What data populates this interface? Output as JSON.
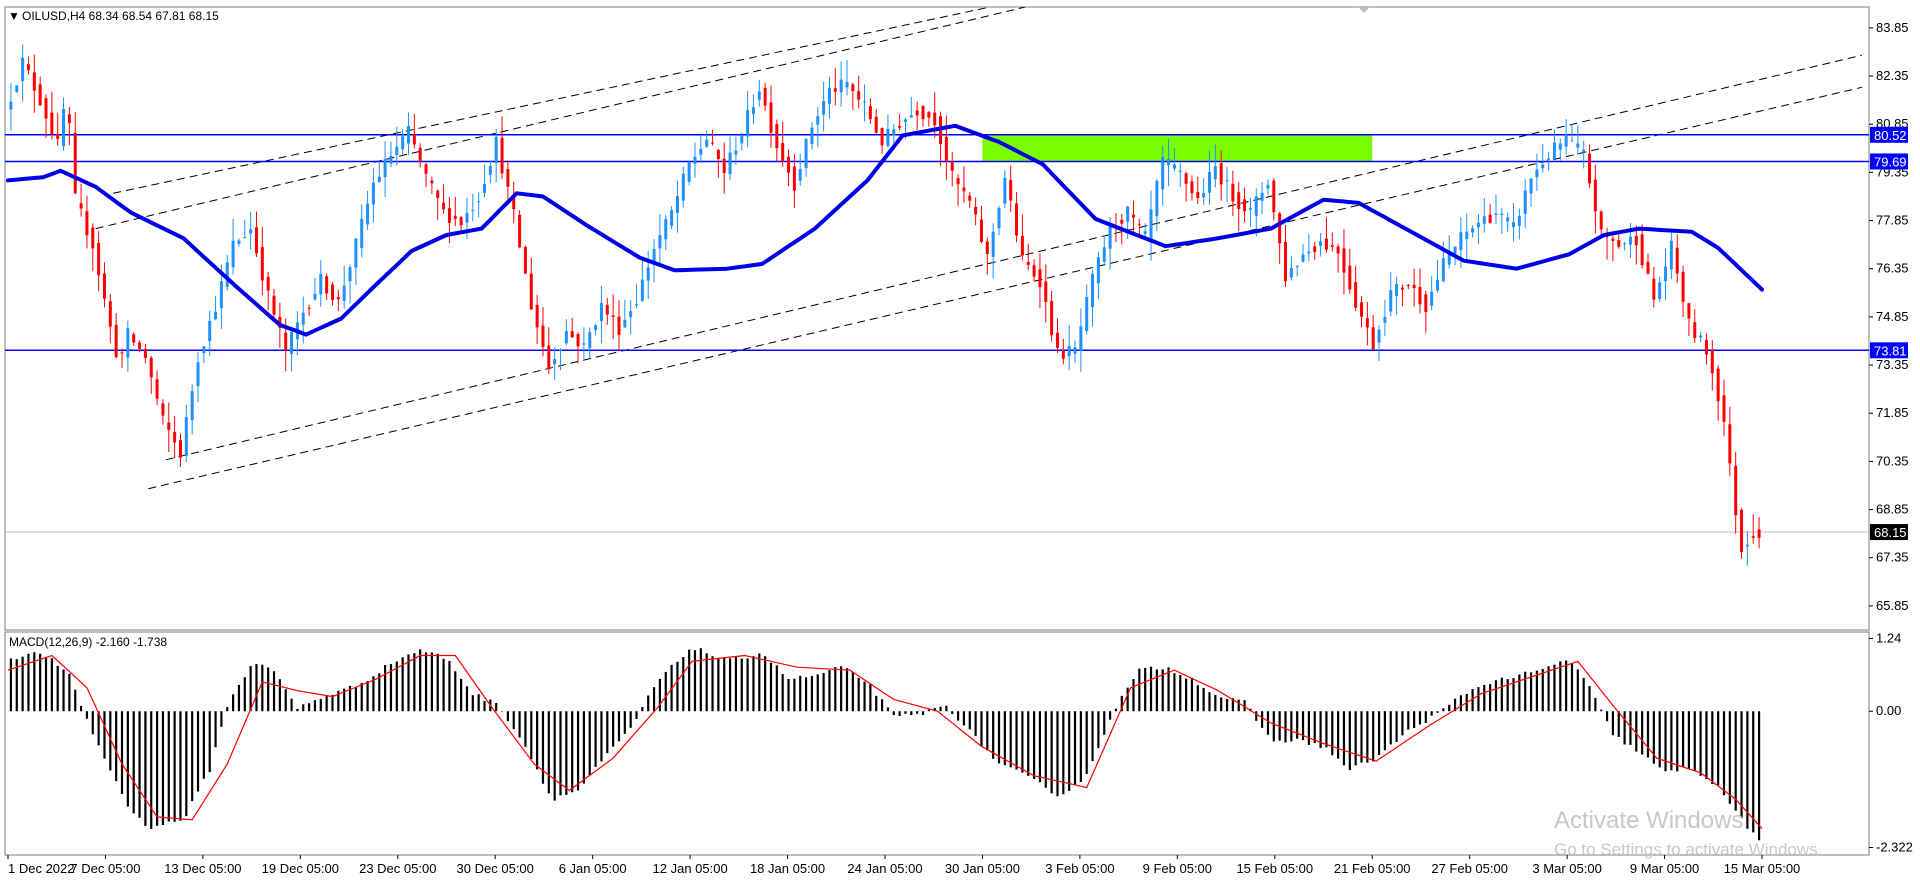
{
  "header": {
    "symbol_line": "OILUSD,H4  68.34 68.54 67.81 68.15",
    "menu_marker": "▼"
  },
  "macd_header": "MACD(12,26,9) -2.160 -1.738",
  "watermark": {
    "title": "Activate Windows",
    "subtitle": "Go to Settings to activate Windows."
  },
  "colors": {
    "bull_candle": "#1e90ff",
    "bear_candle": "#ff0000",
    "moving_average": "#0000e6",
    "support_resistance": "#0000ff",
    "zone_fill": "#7cfc00",
    "channel_lines": "#000000",
    "macd_histogram": "#000000",
    "macd_signal": "#ff0000",
    "label_bg_levels": "#0000ff",
    "label_bg_price": "#000000"
  },
  "chart_data": [
    {
      "type": "candlestick",
      "symbol": "OILUSD",
      "timeframe": "H4",
      "ylim": [
        65.1,
        84.5
      ],
      "y_ticks": [
        "83.85",
        "82.35",
        "80.85",
        "79.35",
        "77.85",
        "76.35",
        "74.85",
        "73.35",
        "71.85",
        "70.35",
        "68.85",
        "67.35",
        "65.85"
      ],
      "x_ticks": [
        "1 Dec 2022",
        "7 Dec 05:00",
        "13 Dec 05:00",
        "19 Dec 05:00",
        "23 Dec 05:00",
        "30 Dec 05:00",
        "6 Jan 05:00",
        "12 Jan 05:00",
        "18 Jan 05:00",
        "24 Jan 05:00",
        "30 Jan 05:00",
        "3 Feb 05:00",
        "9 Feb 05:00",
        "15 Feb 05:00",
        "21 Feb 05:00",
        "27 Feb 05:00",
        "3 Mar 05:00",
        "9 Mar 05:00",
        "15 Mar 05:00"
      ],
      "last_bar": {
        "open": 68.34,
        "high": 68.54,
        "low": 67.81,
        "close": 68.15
      },
      "horizontal_levels": [
        {
          "value": 80.52,
          "label": "80.52"
        },
        {
          "value": 79.69,
          "label": "79.69"
        },
        {
          "value": 73.81,
          "label": "73.81"
        }
      ],
      "current_price_label": "68.15",
      "current_price": 68.15,
      "zone": {
        "x_from": "30 Jan 05:00",
        "x_to": "21 Feb 05:00",
        "y_from": 79.69,
        "y_to": 80.52
      },
      "moving_average_path": [
        {
          "x": 0.0,
          "y": 79.1
        },
        {
          "x": 0.02,
          "y": 79.2
        },
        {
          "x": 0.03,
          "y": 79.4
        },
        {
          "x": 0.05,
          "y": 78.9
        },
        {
          "x": 0.07,
          "y": 78.1
        },
        {
          "x": 0.1,
          "y": 77.3
        },
        {
          "x": 0.13,
          "y": 75.8
        },
        {
          "x": 0.155,
          "y": 74.6
        },
        {
          "x": 0.17,
          "y": 74.3
        },
        {
          "x": 0.19,
          "y": 74.8
        },
        {
          "x": 0.205,
          "y": 75.6
        },
        {
          "x": 0.23,
          "y": 76.9
        },
        {
          "x": 0.25,
          "y": 77.4
        },
        {
          "x": 0.27,
          "y": 77.6
        },
        {
          "x": 0.29,
          "y": 78.7
        },
        {
          "x": 0.305,
          "y": 78.6
        },
        {
          "x": 0.33,
          "y": 77.7
        },
        {
          "x": 0.36,
          "y": 76.7
        },
        {
          "x": 0.38,
          "y": 76.3
        },
        {
          "x": 0.41,
          "y": 76.35
        },
        {
          "x": 0.43,
          "y": 76.5
        },
        {
          "x": 0.46,
          "y": 77.6
        },
        {
          "x": 0.49,
          "y": 79.1
        },
        {
          "x": 0.51,
          "y": 80.5
        },
        {
          "x": 0.54,
          "y": 80.8
        },
        {
          "x": 0.565,
          "y": 80.3
        },
        {
          "x": 0.59,
          "y": 79.6
        },
        {
          "x": 0.62,
          "y": 77.9
        },
        {
          "x": 0.66,
          "y": 77.05
        },
        {
          "x": 0.69,
          "y": 77.3
        },
        {
          "x": 0.72,
          "y": 77.6
        },
        {
          "x": 0.75,
          "y": 78.5
        },
        {
          "x": 0.77,
          "y": 78.4
        },
        {
          "x": 0.8,
          "y": 77.5
        },
        {
          "x": 0.83,
          "y": 76.6
        },
        {
          "x": 0.86,
          "y": 76.35
        },
        {
          "x": 0.89,
          "y": 76.8
        },
        {
          "x": 0.91,
          "y": 77.4
        },
        {
          "x": 0.93,
          "y": 77.6
        },
        {
          "x": 0.96,
          "y": 77.5
        },
        {
          "x": 0.975,
          "y": 77.0
        },
        {
          "x": 1.0,
          "y": 75.7
        }
      ],
      "channel_lines": [
        {
          "from": {
            "x": 0.05,
            "y": 77.6
          },
          "to": {
            "x": 0.58,
            "y": 84.5
          }
        },
        {
          "from": {
            "x": 0.06,
            "y": 78.7
          },
          "to": {
            "x": 0.56,
            "y": 84.5
          }
        },
        {
          "from": {
            "x": 0.08,
            "y": 69.5
          },
          "to": {
            "x": 1.0,
            "y": 82.0
          }
        },
        {
          "from": {
            "x": 0.09,
            "y": 70.4
          },
          "to": {
            "x": 1.0,
            "y": 83.0
          }
        }
      ],
      "price_path": [
        {
          "x": 0.0,
          "y": 81.2
        },
        {
          "x": 0.01,
          "y": 82.8
        },
        {
          "x": 0.02,
          "y": 81.6
        },
        {
          "x": 0.03,
          "y": 80.2
        },
        {
          "x": 0.035,
          "y": 81.8
        },
        {
          "x": 0.04,
          "y": 78.5
        },
        {
          "x": 0.05,
          "y": 77.1
        },
        {
          "x": 0.06,
          "y": 74.5
        },
        {
          "x": 0.065,
          "y": 73.4
        },
        {
          "x": 0.07,
          "y": 74.3
        },
        {
          "x": 0.08,
          "y": 73.6
        },
        {
          "x": 0.09,
          "y": 71.6
        },
        {
          "x": 0.1,
          "y": 70.6
        },
        {
          "x": 0.11,
          "y": 73.6
        },
        {
          "x": 0.12,
          "y": 75.2
        },
        {
          "x": 0.13,
          "y": 77.1
        },
        {
          "x": 0.14,
          "y": 77.6
        },
        {
          "x": 0.15,
          "y": 75.5
        },
        {
          "x": 0.16,
          "y": 73.8
        },
        {
          "x": 0.17,
          "y": 75.0
        },
        {
          "x": 0.18,
          "y": 76.0
        },
        {
          "x": 0.19,
          "y": 75.3
        },
        {
          "x": 0.2,
          "y": 77.1
        },
        {
          "x": 0.21,
          "y": 79.0
        },
        {
          "x": 0.22,
          "y": 79.9
        },
        {
          "x": 0.23,
          "y": 80.6
        },
        {
          "x": 0.24,
          "y": 79.2
        },
        {
          "x": 0.25,
          "y": 78.1
        },
        {
          "x": 0.26,
          "y": 77.8
        },
        {
          "x": 0.27,
          "y": 78.6
        },
        {
          "x": 0.28,
          "y": 80.3
        },
        {
          "x": 0.29,
          "y": 78.0
        },
        {
          "x": 0.3,
          "y": 75.2
        },
        {
          "x": 0.31,
          "y": 73.3
        },
        {
          "x": 0.32,
          "y": 74.4
        },
        {
          "x": 0.33,
          "y": 73.9
        },
        {
          "x": 0.34,
          "y": 75.2
        },
        {
          "x": 0.35,
          "y": 74.5
        },
        {
          "x": 0.36,
          "y": 75.4
        },
        {
          "x": 0.37,
          "y": 77.0
        },
        {
          "x": 0.38,
          "y": 78.1
        },
        {
          "x": 0.39,
          "y": 79.6
        },
        {
          "x": 0.4,
          "y": 80.4
        },
        {
          "x": 0.41,
          "y": 79.4
        },
        {
          "x": 0.42,
          "y": 80.6
        },
        {
          "x": 0.43,
          "y": 82.0
        },
        {
          "x": 0.44,
          "y": 80.2
        },
        {
          "x": 0.45,
          "y": 79.0
        },
        {
          "x": 0.46,
          "y": 80.8
        },
        {
          "x": 0.47,
          "y": 81.9
        },
        {
          "x": 0.48,
          "y": 82.1
        },
        {
          "x": 0.49,
          "y": 81.4
        },
        {
          "x": 0.5,
          "y": 80.3
        },
        {
          "x": 0.51,
          "y": 80.9
        },
        {
          "x": 0.52,
          "y": 81.3
        },
        {
          "x": 0.53,
          "y": 81.0
        },
        {
          "x": 0.54,
          "y": 79.2
        },
        {
          "x": 0.55,
          "y": 78.4
        },
        {
          "x": 0.56,
          "y": 76.7
        },
        {
          "x": 0.57,
          "y": 79.2
        },
        {
          "x": 0.58,
          "y": 76.6
        },
        {
          "x": 0.59,
          "y": 76.0
        },
        {
          "x": 0.6,
          "y": 73.7
        },
        {
          "x": 0.61,
          "y": 73.8
        },
        {
          "x": 0.62,
          "y": 76.0
        },
        {
          "x": 0.63,
          "y": 77.6
        },
        {
          "x": 0.64,
          "y": 78.1
        },
        {
          "x": 0.65,
          "y": 77.3
        },
        {
          "x": 0.66,
          "y": 79.7
        },
        {
          "x": 0.67,
          "y": 79.3
        },
        {
          "x": 0.68,
          "y": 78.5
        },
        {
          "x": 0.69,
          "y": 79.5
        },
        {
          "x": 0.7,
          "y": 78.6
        },
        {
          "x": 0.71,
          "y": 78.1
        },
        {
          "x": 0.72,
          "y": 79.1
        },
        {
          "x": 0.73,
          "y": 76.1
        },
        {
          "x": 0.74,
          "y": 76.8
        },
        {
          "x": 0.75,
          "y": 77.2
        },
        {
          "x": 0.76,
          "y": 76.9
        },
        {
          "x": 0.77,
          "y": 75.3
        },
        {
          "x": 0.78,
          "y": 74.0
        },
        {
          "x": 0.79,
          "y": 75.6
        },
        {
          "x": 0.8,
          "y": 75.9
        },
        {
          "x": 0.81,
          "y": 75.2
        },
        {
          "x": 0.82,
          "y": 76.5
        },
        {
          "x": 0.83,
          "y": 77.3
        },
        {
          "x": 0.84,
          "y": 77.8
        },
        {
          "x": 0.85,
          "y": 78.1
        },
        {
          "x": 0.86,
          "y": 77.6
        },
        {
          "x": 0.87,
          "y": 79.2
        },
        {
          "x": 0.88,
          "y": 79.9
        },
        {
          "x": 0.89,
          "y": 80.4
        },
        {
          "x": 0.9,
          "y": 79.9
        },
        {
          "x": 0.91,
          "y": 77.4
        },
        {
          "x": 0.92,
          "y": 77.1
        },
        {
          "x": 0.93,
          "y": 77.3
        },
        {
          "x": 0.94,
          "y": 75.4
        },
        {
          "x": 0.95,
          "y": 77.0
        },
        {
          "x": 0.96,
          "y": 74.6
        },
        {
          "x": 0.97,
          "y": 73.8
        },
        {
          "x": 0.975,
          "y": 72.8
        },
        {
          "x": 0.98,
          "y": 71.6
        },
        {
          "x": 0.985,
          "y": 69.4
        },
        {
          "x": 0.99,
          "y": 67.6
        },
        {
          "x": 0.995,
          "y": 68.1
        },
        {
          "x": 1.0,
          "y": 68.15
        }
      ]
    },
    {
      "type": "bar",
      "name": "MACD(12,26,9)",
      "values_text": "-2.160 -1.738",
      "ylim": [
        -2.45,
        1.35
      ],
      "y_ticks": [
        "1.24",
        "0.00",
        "-2.322"
      ],
      "histogram_path": [
        {
          "x": 0.0,
          "y": 0.9
        },
        {
          "x": 0.02,
          "y": 1.0
        },
        {
          "x": 0.035,
          "y": 0.6
        },
        {
          "x": 0.05,
          "y": -0.5
        },
        {
          "x": 0.07,
          "y": -1.7
        },
        {
          "x": 0.08,
          "y": -1.98
        },
        {
          "x": 0.1,
          "y": -1.85
        },
        {
          "x": 0.115,
          "y": -1.0
        },
        {
          "x": 0.125,
          "y": 0.1
        },
        {
          "x": 0.14,
          "y": 0.85
        },
        {
          "x": 0.15,
          "y": 0.75
        },
        {
          "x": 0.165,
          "y": 0.05
        },
        {
          "x": 0.18,
          "y": 0.25
        },
        {
          "x": 0.2,
          "y": 0.45
        },
        {
          "x": 0.22,
          "y": 0.85
        },
        {
          "x": 0.235,
          "y": 1.05
        },
        {
          "x": 0.25,
          "y": 0.9
        },
        {
          "x": 0.265,
          "y": 0.3
        },
        {
          "x": 0.28,
          "y": 0.1
        },
        {
          "x": 0.295,
          "y": -0.6
        },
        {
          "x": 0.31,
          "y": -1.5
        },
        {
          "x": 0.325,
          "y": -1.35
        },
        {
          "x": 0.34,
          "y": -0.8
        },
        {
          "x": 0.355,
          "y": -0.3
        },
        {
          "x": 0.37,
          "y": 0.5
        },
        {
          "x": 0.39,
          "y": 1.1
        },
        {
          "x": 0.41,
          "y": 0.85
        },
        {
          "x": 0.43,
          "y": 1.0
        },
        {
          "x": 0.445,
          "y": 0.55
        },
        {
          "x": 0.46,
          "y": 0.6
        },
        {
          "x": 0.475,
          "y": 0.75
        },
        {
          "x": 0.49,
          "y": 0.5
        },
        {
          "x": 0.505,
          "y": -0.1
        },
        {
          "x": 0.52,
          "y": -0.05
        },
        {
          "x": 0.535,
          "y": 0.1
        },
        {
          "x": 0.55,
          "y": -0.4
        },
        {
          "x": 0.565,
          "y": -0.9
        },
        {
          "x": 0.58,
          "y": -1.1
        },
        {
          "x": 0.6,
          "y": -1.45
        },
        {
          "x": 0.615,
          "y": -1.1
        },
        {
          "x": 0.63,
          "y": 0.0
        },
        {
          "x": 0.645,
          "y": 0.7
        },
        {
          "x": 0.66,
          "y": 0.75
        },
        {
          "x": 0.675,
          "y": 0.55
        },
        {
          "x": 0.69,
          "y": 0.25
        },
        {
          "x": 0.705,
          "y": 0.15
        },
        {
          "x": 0.72,
          "y": -0.5
        },
        {
          "x": 0.735,
          "y": -0.5
        },
        {
          "x": 0.75,
          "y": -0.6
        },
        {
          "x": 0.765,
          "y": -1.0
        },
        {
          "x": 0.78,
          "y": -0.8
        },
        {
          "x": 0.8,
          "y": -0.3
        },
        {
          "x": 0.815,
          "y": -0.05
        },
        {
          "x": 0.83,
          "y": 0.3
        },
        {
          "x": 0.845,
          "y": 0.5
        },
        {
          "x": 0.86,
          "y": 0.6
        },
        {
          "x": 0.875,
          "y": 0.7
        },
        {
          "x": 0.89,
          "y": 0.9
        },
        {
          "x": 0.9,
          "y": 0.5
        },
        {
          "x": 0.915,
          "y": -0.4
        },
        {
          "x": 0.93,
          "y": -0.7
        },
        {
          "x": 0.945,
          "y": -1.05
        },
        {
          "x": 0.96,
          "y": -0.95
        },
        {
          "x": 0.975,
          "y": -1.3
        },
        {
          "x": 0.99,
          "y": -1.9
        },
        {
          "x": 1.0,
          "y": -2.3
        }
      ],
      "signal_path": [
        {
          "x": 0.0,
          "y": 0.7
        },
        {
          "x": 0.025,
          "y": 0.95
        },
        {
          "x": 0.045,
          "y": 0.4
        },
        {
          "x": 0.065,
          "y": -0.9
        },
        {
          "x": 0.085,
          "y": -1.8
        },
        {
          "x": 0.105,
          "y": -1.85
        },
        {
          "x": 0.125,
          "y": -0.9
        },
        {
          "x": 0.145,
          "y": 0.5
        },
        {
          "x": 0.165,
          "y": 0.35
        },
        {
          "x": 0.185,
          "y": 0.25
        },
        {
          "x": 0.21,
          "y": 0.55
        },
        {
          "x": 0.235,
          "y": 0.95
        },
        {
          "x": 0.255,
          "y": 0.95
        },
        {
          "x": 0.275,
          "y": 0.1
        },
        {
          "x": 0.3,
          "y": -0.9
        },
        {
          "x": 0.32,
          "y": -1.35
        },
        {
          "x": 0.345,
          "y": -0.8
        },
        {
          "x": 0.37,
          "y": 0.05
        },
        {
          "x": 0.39,
          "y": 0.85
        },
        {
          "x": 0.42,
          "y": 0.95
        },
        {
          "x": 0.45,
          "y": 0.75
        },
        {
          "x": 0.48,
          "y": 0.7
        },
        {
          "x": 0.505,
          "y": 0.2
        },
        {
          "x": 0.53,
          "y": 0.0
        },
        {
          "x": 0.555,
          "y": -0.6
        },
        {
          "x": 0.585,
          "y": -1.1
        },
        {
          "x": 0.615,
          "y": -1.3
        },
        {
          "x": 0.64,
          "y": 0.4
        },
        {
          "x": 0.665,
          "y": 0.7
        },
        {
          "x": 0.69,
          "y": 0.35
        },
        {
          "x": 0.72,
          "y": -0.2
        },
        {
          "x": 0.75,
          "y": -0.55
        },
        {
          "x": 0.78,
          "y": -0.85
        },
        {
          "x": 0.81,
          "y": -0.25
        },
        {
          "x": 0.84,
          "y": 0.3
        },
        {
          "x": 0.87,
          "y": 0.6
        },
        {
          "x": 0.895,
          "y": 0.85
        },
        {
          "x": 0.915,
          "y": 0.1
        },
        {
          "x": 0.94,
          "y": -0.8
        },
        {
          "x": 0.965,
          "y": -1.05
        },
        {
          "x": 0.985,
          "y": -1.5
        },
        {
          "x": 1.0,
          "y": -2.0
        }
      ]
    }
  ]
}
